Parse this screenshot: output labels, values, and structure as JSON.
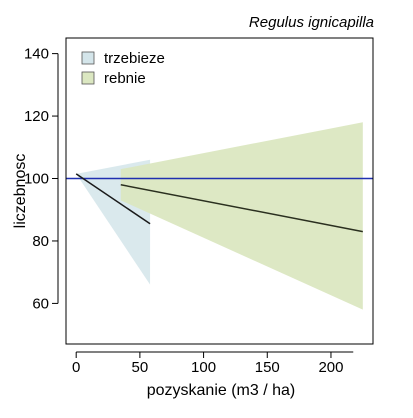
{
  "chart_data": {
    "type": "line",
    "title": "Regulus ignicapilla",
    "xlabel": "pozyskanie (m3 / ha)",
    "ylabel": "liczebnosc",
    "xlim": [
      -8,
      233
    ],
    "ylim": [
      47,
      145
    ],
    "x_ticks": [
      0,
      50,
      100,
      150,
      200
    ],
    "y_ticks": [
      60,
      80,
      100,
      120,
      140
    ],
    "grid": false,
    "legend_position": "top-left",
    "reference_line": {
      "y": 100,
      "color": "#1f2fb0"
    },
    "series": [
      {
        "name": "trzebieze",
        "fill_color": "#d4e5ea",
        "line_color": "#1a1a1a",
        "fit": [
          {
            "x": 0,
            "y": 101.5
          },
          {
            "x": 58,
            "y": 85.5
          }
        ],
        "ci_upper": [
          {
            "x": 0,
            "y": 101.5
          },
          {
            "x": 58,
            "y": 106
          }
        ],
        "ci_lower": [
          {
            "x": 0,
            "y": 101.5
          },
          {
            "x": 58,
            "y": 66
          }
        ]
      },
      {
        "name": "rebnie",
        "fill_color": "#dbe7c1",
        "line_color": "#2a2f1f",
        "fit": [
          {
            "x": 35,
            "y": 98
          },
          {
            "x": 225,
            "y": 83
          }
        ],
        "ci_upper": [
          {
            "x": 35,
            "y": 103
          },
          {
            "x": 225,
            "y": 118
          }
        ],
        "ci_lower": [
          {
            "x": 35,
            "y": 93
          },
          {
            "x": 225,
            "y": 58
          }
        ]
      }
    ]
  }
}
